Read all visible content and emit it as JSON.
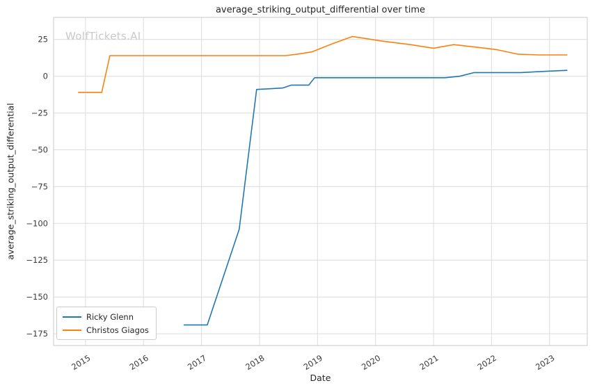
{
  "watermark": {
    "text": "WolfTickets.AI",
    "color": "#c9c9c9"
  },
  "chart_data": {
    "type": "line",
    "title": "average_striking_output_differential over time",
    "xlabel": "Date",
    "ylabel": "average_striking_output_differential",
    "xlim": [
      2014.45,
      2023.65
    ],
    "ylim": [
      -183,
      40
    ],
    "grid": true,
    "legend_position": "lower left",
    "colors": {
      "grid": "#dcdcdc",
      "spine": "#c9c9c9",
      "background": "#ffffff"
    },
    "x_ticks": {
      "values": [
        2015,
        2016,
        2017,
        2018,
        2019,
        2020,
        2021,
        2022,
        2023
      ],
      "labels": [
        "2015",
        "2016",
        "2017",
        "2018",
        "2019",
        "2020",
        "2021",
        "2022",
        "2023"
      ]
    },
    "y_ticks": {
      "values": [
        25,
        0,
        -25,
        -50,
        -75,
        -100,
        -125,
        -150,
        -175
      ],
      "labels": [
        "25",
        "0",
        "−25",
        "−50",
        "−75",
        "−100",
        "−125",
        "−150",
        "−175"
      ]
    },
    "series": [
      {
        "name": "Ricky Glenn",
        "color": "#1f77b4",
        "x": [
          2016.7,
          2017.1,
          2017.65,
          2017.95,
          2018.4,
          2018.55,
          2018.85,
          2018.95,
          2019.5,
          2020.3,
          2021.2,
          2021.45,
          2021.7,
          2022.5,
          2023.0,
          2023.3
        ],
        "y": [
          -169,
          -169,
          -104,
          -9,
          -8,
          -6,
          -6,
          -1,
          -1,
          -1,
          -1,
          0,
          2.5,
          2.5,
          3.5,
          4
        ]
      },
      {
        "name": "Christos Giagos",
        "color": "#ff7f0e",
        "x": [
          2014.88,
          2015.28,
          2015.42,
          2016.2,
          2017.0,
          2017.9,
          2018.45,
          2018.65,
          2018.9,
          2019.25,
          2019.6,
          2020.1,
          2020.6,
          2021.0,
          2021.35,
          2021.9,
          2022.1,
          2022.45,
          2022.8,
          2023.3
        ],
        "y": [
          -11,
          -11,
          14,
          14,
          14,
          14,
          14,
          15,
          16.5,
          22,
          27,
          24,
          21.5,
          19,
          21.5,
          19,
          18,
          15,
          14.5,
          14.5
        ]
      }
    ]
  }
}
